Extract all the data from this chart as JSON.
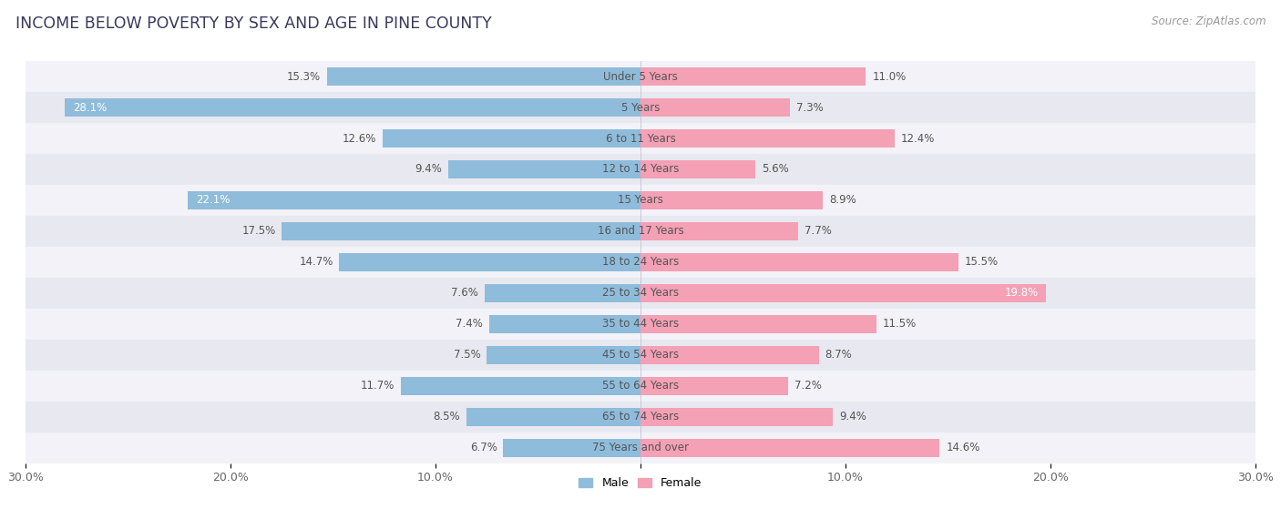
{
  "title": "INCOME BELOW POVERTY BY SEX AND AGE IN PINE COUNTY",
  "source": "Source: ZipAtlas.com",
  "categories": [
    "Under 5 Years",
    "5 Years",
    "6 to 11 Years",
    "12 to 14 Years",
    "15 Years",
    "16 and 17 Years",
    "18 to 24 Years",
    "25 to 34 Years",
    "35 to 44 Years",
    "45 to 54 Years",
    "55 to 64 Years",
    "65 to 74 Years",
    "75 Years and over"
  ],
  "male": [
    15.3,
    28.1,
    12.6,
    9.4,
    22.1,
    17.5,
    14.7,
    7.6,
    7.4,
    7.5,
    11.7,
    8.5,
    6.7
  ],
  "female": [
    11.0,
    7.3,
    12.4,
    5.6,
    8.9,
    7.7,
    15.5,
    19.8,
    11.5,
    8.7,
    7.2,
    9.4,
    14.6
  ],
  "male_color": "#8fbcdb",
  "female_color": "#f4a0b5",
  "male_label_inside_threshold": 19.0,
  "female_label_inside_threshold": 17.0,
  "xlim": 30.0,
  "bar_height": 0.58,
  "fig_bg_color": "#ffffff",
  "row_bg_colors": [
    "#f2f2f8",
    "#e8e8f0"
  ],
  "title_color": "#3a3a5c",
  "label_color": "#555555",
  "center_label_color": "#555555",
  "legend_male_color": "#8fbcdb",
  "legend_female_color": "#f4a0b5"
}
